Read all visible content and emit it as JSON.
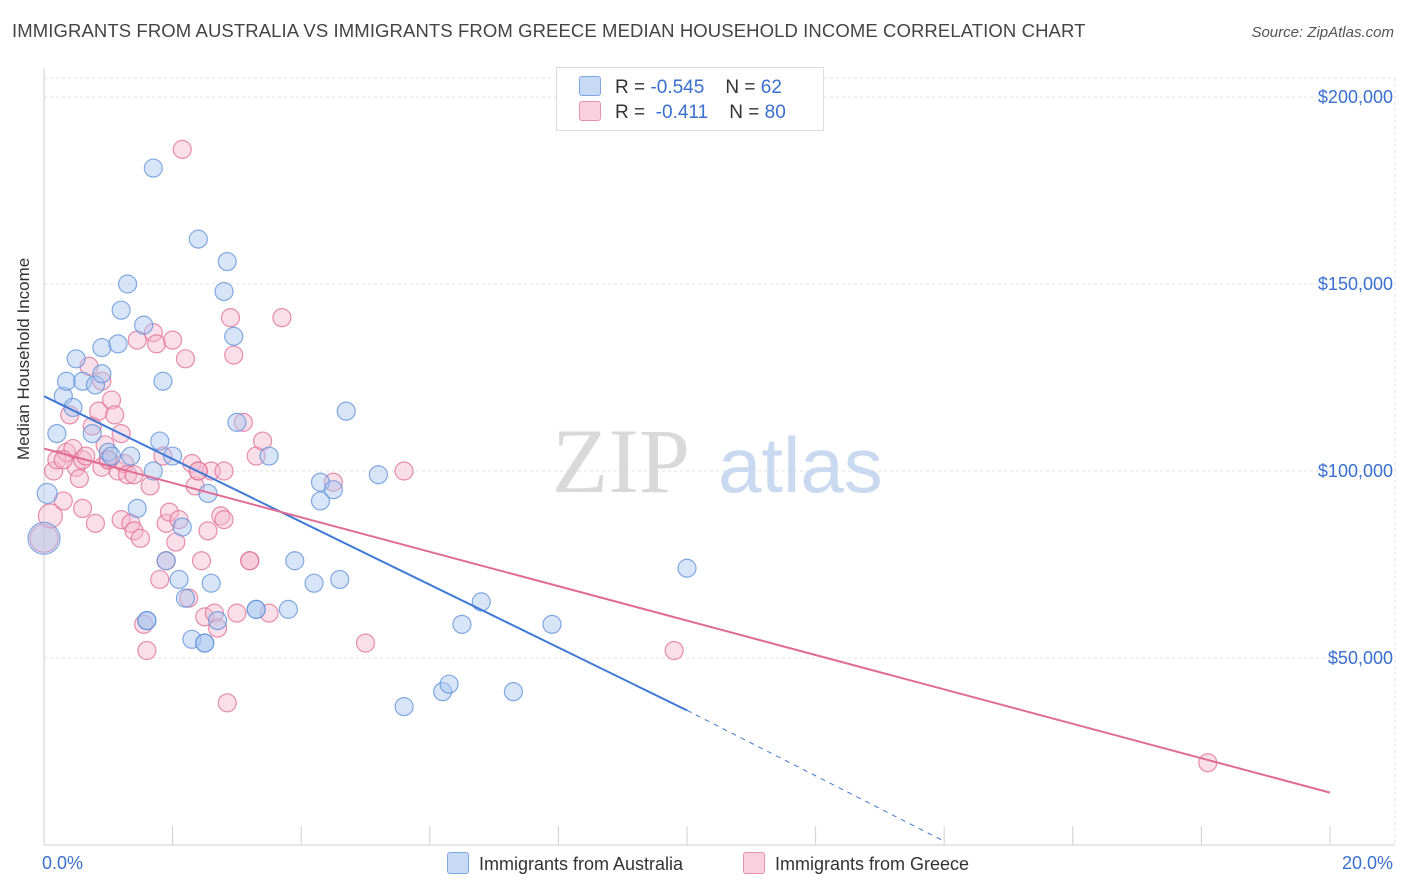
{
  "header": {
    "title": "IMMIGRANTS FROM AUSTRALIA VS IMMIGRANTS FROM GREECE MEDIAN HOUSEHOLD INCOME CORRELATION CHART",
    "source": "Source: ZipAtlas.com"
  },
  "watermark": {
    "zip": "ZIP",
    "atlas": "atlas"
  },
  "legend": {
    "r_label": "R =",
    "n_label": "N =",
    "rows": [
      {
        "r": "-0.545",
        "n": "62",
        "color": "#a9c6f0"
      },
      {
        "r": "-0.411",
        "n": "80",
        "color": "#f5b9cc"
      }
    ]
  },
  "bottom_legend": {
    "australia": "Immigrants from Australia",
    "greece": "Immigrants from Greece"
  },
  "chart_data": {
    "type": "scatter",
    "title": "IMMIGRANTS FROM AUSTRALIA VS IMMIGRANTS FROM GREECE MEDIAN HOUSEHOLD INCOME CORRELATION CHART",
    "xlabel": "",
    "ylabel": "Median Household Income",
    "xlim": [
      0,
      20
    ],
    "ylim": [
      0,
      210000
    ],
    "x_tick_labels": [
      "0.0%",
      "20.0%"
    ],
    "y_ticks": [
      {
        "value": 50000,
        "label": "$50,000"
      },
      {
        "value": 100000,
        "label": "$100,000"
      },
      {
        "value": 150000,
        "label": "$150,000"
      },
      {
        "value": 200000,
        "label": "$200,000"
      }
    ],
    "grid": true,
    "series": [
      {
        "name": "Immigrants from Australia",
        "color": "#5b8fd9",
        "fill": "#a9c6f0",
        "trend": {
          "x0": 0.0,
          "y0": 120000,
          "x1": 10.0,
          "y1": 36000,
          "dash_to_x": 14.0,
          "dash_to_y": 1000
        },
        "points": [
          [
            0.0,
            82000,
            16
          ],
          [
            0.05,
            94000,
            10
          ],
          [
            0.2,
            110000,
            9
          ],
          [
            0.3,
            120000,
            9
          ],
          [
            0.35,
            124000,
            9
          ],
          [
            0.45,
            117000,
            9
          ],
          [
            0.5,
            130000,
            9
          ],
          [
            0.6,
            124000,
            9
          ],
          [
            0.75,
            110000,
            9
          ],
          [
            0.8,
            123000,
            9
          ],
          [
            0.9,
            126000,
            9
          ],
          [
            0.9,
            133000,
            9
          ],
          [
            1.0,
            105000,
            9
          ],
          [
            1.05,
            104000,
            9
          ],
          [
            1.15,
            134000,
            9
          ],
          [
            1.2,
            143000,
            9
          ],
          [
            1.3,
            150000,
            9
          ],
          [
            1.35,
            104000,
            9
          ],
          [
            1.45,
            90000,
            9
          ],
          [
            1.55,
            139000,
            9
          ],
          [
            1.6,
            60000,
            9
          ],
          [
            1.7,
            181000,
            9
          ],
          [
            1.7,
            100000,
            9
          ],
          [
            1.8,
            108000,
            9
          ],
          [
            1.85,
            124000,
            9
          ],
          [
            1.9,
            76000,
            9
          ],
          [
            2.0,
            104000,
            9
          ],
          [
            2.1,
            71000,
            9
          ],
          [
            2.15,
            85000,
            9
          ],
          [
            2.2,
            66000,
            9
          ],
          [
            2.3,
            55000,
            9
          ],
          [
            2.4,
            162000,
            9
          ],
          [
            2.5,
            54000,
            9
          ],
          [
            2.55,
            94000,
            9
          ],
          [
            2.6,
            70000,
            9
          ],
          [
            2.7,
            60000,
            9
          ],
          [
            2.8,
            148000,
            9
          ],
          [
            2.85,
            156000,
            9
          ],
          [
            2.95,
            136000,
            9
          ],
          [
            3.0,
            113000,
            9
          ],
          [
            3.3,
            63000,
            9
          ],
          [
            3.5,
            104000,
            9
          ],
          [
            3.8,
            63000,
            9
          ],
          [
            3.9,
            76000,
            9
          ],
          [
            4.2,
            70000,
            9
          ],
          [
            4.3,
            97000,
            9
          ],
          [
            4.3,
            92000,
            9
          ],
          [
            4.5,
            95000,
            9
          ],
          [
            4.6,
            71000,
            9
          ],
          [
            4.7,
            116000,
            9
          ],
          [
            5.2,
            99000,
            9
          ],
          [
            5.6,
            37000,
            9
          ],
          [
            6.2,
            41000,
            9
          ],
          [
            6.3,
            43000,
            9
          ],
          [
            6.5,
            59000,
            9
          ],
          [
            6.8,
            65000,
            9
          ],
          [
            7.3,
            41000,
            9
          ],
          [
            7.9,
            59000,
            9
          ],
          [
            10.0,
            74000,
            9
          ],
          [
            3.3,
            63000,
            9
          ],
          [
            2.5,
            54000,
            9
          ],
          [
            1.6,
            60000,
            9
          ]
        ]
      },
      {
        "name": "Immigrants from Greece",
        "color": "#e06b93",
        "fill": "#f5b9cc",
        "trend": {
          "x0": 0.0,
          "y0": 106000,
          "x1": 20.0,
          "y1": 14000
        },
        "points": [
          [
            0.0,
            82000,
            14
          ],
          [
            0.1,
            88000,
            12
          ],
          [
            0.15,
            100000,
            9
          ],
          [
            0.2,
            103000,
            9
          ],
          [
            0.3,
            92000,
            9
          ],
          [
            0.35,
            105000,
            9
          ],
          [
            0.4,
            115000,
            9
          ],
          [
            0.45,
            106000,
            9
          ],
          [
            0.5,
            101000,
            9
          ],
          [
            0.55,
            98000,
            9
          ],
          [
            0.6,
            103000,
            9
          ],
          [
            0.65,
            104000,
            9
          ],
          [
            0.7,
            128000,
            9
          ],
          [
            0.75,
            112000,
            9
          ],
          [
            0.8,
            86000,
            9
          ],
          [
            0.85,
            116000,
            9
          ],
          [
            0.9,
            101000,
            9
          ],
          [
            0.95,
            107000,
            9
          ],
          [
            1.0,
            103000,
            9
          ],
          [
            1.05,
            119000,
            9
          ],
          [
            1.1,
            115000,
            9
          ],
          [
            1.15,
            100000,
            9
          ],
          [
            1.2,
            87000,
            9
          ],
          [
            1.25,
            102000,
            9
          ],
          [
            1.3,
            99000,
            9
          ],
          [
            1.35,
            86000,
            9
          ],
          [
            1.4,
            84000,
            9
          ],
          [
            1.45,
            135000,
            9
          ],
          [
            1.5,
            82000,
            9
          ],
          [
            1.55,
            59000,
            9
          ],
          [
            1.6,
            52000,
            9
          ],
          [
            1.65,
            96000,
            9
          ],
          [
            1.7,
            137000,
            9
          ],
          [
            1.75,
            134000,
            9
          ],
          [
            1.8,
            71000,
            9
          ],
          [
            1.85,
            104000,
            9
          ],
          [
            1.9,
            86000,
            9
          ],
          [
            1.95,
            89000,
            9
          ],
          [
            2.0,
            135000,
            9
          ],
          [
            2.05,
            81000,
            9
          ],
          [
            2.1,
            87000,
            9
          ],
          [
            2.15,
            186000,
            9
          ],
          [
            2.2,
            130000,
            9
          ],
          [
            2.25,
            66000,
            9
          ],
          [
            2.3,
            102000,
            9
          ],
          [
            2.35,
            96000,
            9
          ],
          [
            2.4,
            100000,
            9
          ],
          [
            2.45,
            76000,
            9
          ],
          [
            2.5,
            61000,
            9
          ],
          [
            2.55,
            84000,
            9
          ],
          [
            2.6,
            100000,
            9
          ],
          [
            2.65,
            62000,
            9
          ],
          [
            2.7,
            58000,
            9
          ],
          [
            2.75,
            88000,
            9
          ],
          [
            2.8,
            100000,
            9
          ],
          [
            2.85,
            38000,
            9
          ],
          [
            2.9,
            141000,
            9
          ],
          [
            2.95,
            131000,
            9
          ],
          [
            3.0,
            62000,
            9
          ],
          [
            3.1,
            113000,
            9
          ],
          [
            3.2,
            76000,
            9
          ],
          [
            3.3,
            104000,
            9
          ],
          [
            3.4,
            108000,
            9
          ],
          [
            3.5,
            62000,
            9
          ],
          [
            3.7,
            141000,
            9
          ],
          [
            4.5,
            97000,
            9
          ],
          [
            5.0,
            54000,
            9
          ],
          [
            5.6,
            100000,
            9
          ],
          [
            9.8,
            52000,
            9
          ],
          [
            18.1,
            22000,
            9
          ],
          [
            0.3,
            103000,
            9
          ],
          [
            0.9,
            124000,
            9
          ],
          [
            1.0,
            103000,
            9
          ],
          [
            1.4,
            99000,
            9
          ],
          [
            1.9,
            76000,
            9
          ],
          [
            2.4,
            100000,
            9
          ],
          [
            2.8,
            87000,
            9
          ],
          [
            3.2,
            76000,
            9
          ],
          [
            0.6,
            90000,
            9
          ],
          [
            1.2,
            110000,
            9
          ]
        ]
      }
    ]
  }
}
